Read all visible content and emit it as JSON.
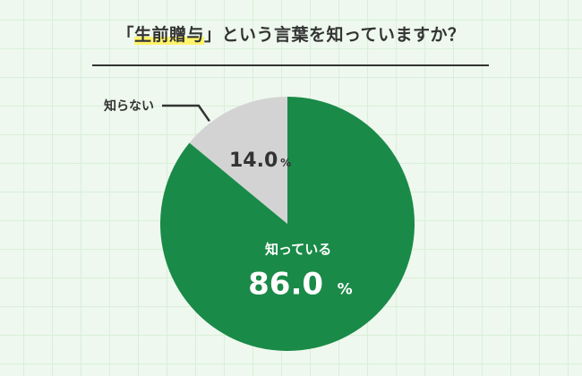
{
  "title": {
    "open_bracket": "「",
    "highlight": "生前贈与",
    "close_bracket": "」",
    "rest": "という言葉を知っていますか？"
  },
  "colors": {
    "primary": "#1a8a48",
    "secondary": "#d3d3d3",
    "highlight": "#fff36b",
    "background": "#eef8ee"
  },
  "chart_data": {
    "type": "pie",
    "title": "「生前贈与」という言葉を知っていますか？",
    "unit": "%",
    "slices": [
      {
        "label": "知っている",
        "value": 86.0,
        "value_text": "86.0",
        "color": "#1a8a48"
      },
      {
        "label": "知らない",
        "value": 14.0,
        "value_text": "14.0",
        "color": "#d3d3d3"
      }
    ]
  }
}
